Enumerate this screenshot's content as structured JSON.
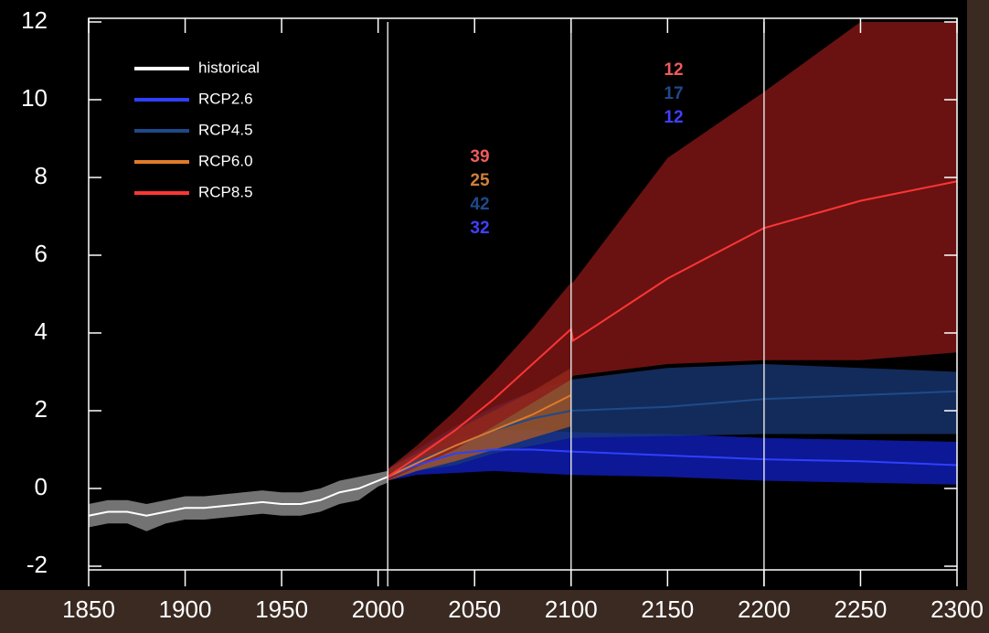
{
  "chart_data": {
    "type": "line",
    "xlim": [
      1850,
      2300
    ],
    "ylim": [
      -2,
      12
    ],
    "xticks": [
      1850,
      1900,
      1950,
      2000,
      2050,
      2100,
      2150,
      2200,
      2250,
      2300
    ],
    "yticks": [
      -2,
      0,
      2,
      4,
      6,
      8,
      10,
      12
    ],
    "vlines": [
      2005,
      2100,
      2200
    ],
    "series": [
      {
        "name": "historical",
        "color": "#ffffff",
        "band_color": "#9a9a9a",
        "x": [
          1850,
          1860,
          1870,
          1880,
          1890,
          1900,
          1910,
          1920,
          1930,
          1940,
          1950,
          1960,
          1970,
          1980,
          1990,
          2000,
          2005
        ],
        "values": [
          -0.7,
          -0.6,
          -0.6,
          -0.7,
          -0.6,
          -0.5,
          -0.5,
          -0.45,
          -0.4,
          -0.35,
          -0.4,
          -0.4,
          -0.3,
          -0.1,
          0,
          0.2,
          0.3
        ],
        "lower": [
          -1.0,
          -0.9,
          -0.9,
          -1.1,
          -0.9,
          -0.8,
          -0.8,
          -0.75,
          -0.7,
          -0.65,
          -0.7,
          -0.7,
          -0.6,
          -0.4,
          -0.3,
          0.05,
          0.15
        ],
        "upper": [
          -0.4,
          -0.3,
          -0.3,
          -0.4,
          -0.3,
          -0.2,
          -0.2,
          -0.15,
          -0.1,
          -0.05,
          -0.1,
          -0.1,
          0,
          0.2,
          0.3,
          0.4,
          0.45
        ]
      },
      {
        "name": "RCP2.6",
        "color": "#2f3fff",
        "band_color": "#1020c8",
        "x": [
          2005,
          2020,
          2040,
          2060,
          2080,
          2100,
          2150,
          2200,
          2250,
          2300
        ],
        "values": [
          0.3,
          0.6,
          0.9,
          1.0,
          1.0,
          0.95,
          0.85,
          0.75,
          0.7,
          0.6
        ],
        "lower": [
          0.2,
          0.35,
          0.4,
          0.45,
          0.4,
          0.35,
          0.3,
          0.2,
          0.15,
          0.1
        ],
        "upper": [
          0.45,
          0.9,
          1.3,
          1.5,
          1.5,
          1.45,
          1.4,
          1.3,
          1.25,
          1.2
        ]
      },
      {
        "name": "RCP4.5",
        "color": "#1e4a8a",
        "band_color": "#1a3a78",
        "x": [
          2005,
          2020,
          2040,
          2060,
          2080,
          2100,
          2150,
          2200,
          2250,
          2300
        ],
        "values": [
          0.3,
          0.7,
          1.1,
          1.5,
          1.8,
          2.0,
          2.1,
          2.3,
          2.4,
          2.5
        ],
        "lower": [
          0.2,
          0.45,
          0.6,
          0.9,
          1.1,
          1.3,
          1.35,
          1.4,
          1.4,
          1.4
        ],
        "upper": [
          0.5,
          1.0,
          1.6,
          2.1,
          2.5,
          2.8,
          3.1,
          3.2,
          3.1,
          3.0
        ]
      },
      {
        "name": "RCP6.0",
        "color": "#e07a2a",
        "band_color": "#b05a20",
        "x": [
          2005,
          2020,
          2040,
          2060,
          2080,
          2100
        ],
        "values": [
          0.3,
          0.65,
          1.1,
          1.5,
          1.9,
          2.4
        ],
        "lower": [
          0.2,
          0.45,
          0.7,
          1.0,
          1.3,
          1.6
        ],
        "upper": [
          0.5,
          0.9,
          1.5,
          2.0,
          2.5,
          3.1
        ]
      },
      {
        "name": "RCP8.5",
        "color": "#ff3535",
        "band_color": "#8e1818",
        "x": [
          2005,
          2020,
          2040,
          2060,
          2080,
          2100,
          2101,
          2150,
          2200,
          2250,
          2300
        ],
        "values": [
          0.3,
          0.8,
          1.5,
          2.3,
          3.2,
          4.1,
          3.8,
          5.4,
          6.7,
          7.4,
          7.9
        ],
        "lower": [
          0.2,
          0.55,
          1.0,
          1.6,
          2.2,
          2.8,
          2.9,
          3.2,
          3.3,
          3.3,
          3.5
        ],
        "upper": [
          0.5,
          1.1,
          2.0,
          3.0,
          4.1,
          5.3,
          5.3,
          8.5,
          10.2,
          12,
          12
        ]
      }
    ],
    "annotation_groups": [
      [
        {
          "value": 39,
          "color": "#f05a5a"
        },
        {
          "value": 25,
          "color": "#d0803a"
        },
        {
          "value": 42,
          "color": "#1e4a8a"
        },
        {
          "value": 32,
          "color": "#4040ff"
        }
      ],
      [
        {
          "value": 12,
          "color": "#f05a5a"
        },
        {
          "value": 17,
          "color": "#1e4a8a"
        },
        {
          "value": 12,
          "color": "#4040ff"
        }
      ]
    ]
  }
}
